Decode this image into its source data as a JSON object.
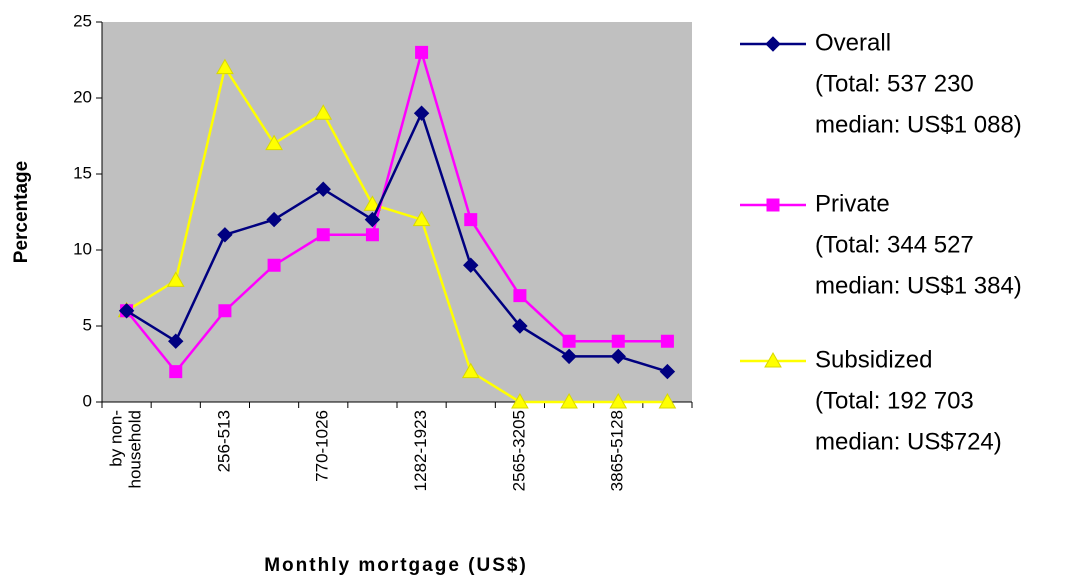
{
  "chart_data": {
    "type": "line",
    "x_label": "Monthly mortgage (US$)",
    "y_label": "Percentage",
    "categories": [
      [
        "by non-",
        "household"
      ],
      null,
      "256-513",
      null,
      "770-1026",
      null,
      "1282-1923",
      null,
      "2565-3205",
      null,
      "3865-5128",
      null
    ],
    "series": [
      {
        "name": "Overall",
        "details": [
          "(Total: 537 230",
          "median: US$1 088)"
        ],
        "color": "#000080",
        "marker": "diamond",
        "values": [
          6,
          4,
          11,
          12,
          14,
          12,
          19,
          9,
          5,
          3,
          3,
          2
        ]
      },
      {
        "name": "Private",
        "details": [
          "(Total: 344 527",
          "median: US$1 384)"
        ],
        "color": "#ff00ff",
        "marker": "square",
        "values": [
          6,
          2,
          6,
          9,
          11,
          11,
          23,
          12,
          7,
          4,
          4,
          4
        ]
      },
      {
        "name": "Subsidized",
        "details": [
          "(Total: 192 703",
          "median: US$724)"
        ],
        "color": "#ffff00",
        "marker": "triangle",
        "values": [
          6,
          8,
          22,
          17,
          19,
          13,
          12,
          2,
          0,
          0,
          0,
          0
        ]
      }
    ],
    "ylim": [
      0,
      25
    ],
    "yticks": [
      0,
      5,
      10,
      15,
      20,
      25
    ],
    "plot_background": "#c0c0c0",
    "grid": false,
    "legend": "right"
  }
}
